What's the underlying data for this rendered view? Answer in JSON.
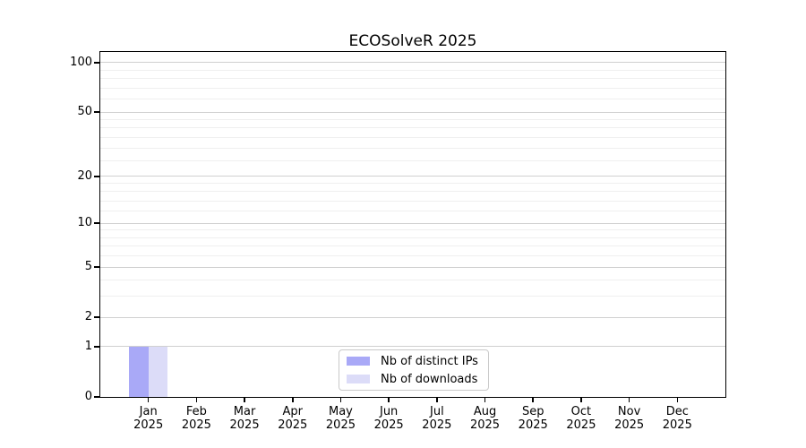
{
  "chart_data": {
    "type": "bar",
    "title": "ECOSolveR 2025",
    "year": "2025",
    "categories": [
      "Jan",
      "Feb",
      "Mar",
      "Apr",
      "May",
      "Jun",
      "Jul",
      "Aug",
      "Sep",
      "Oct",
      "Nov",
      "Dec"
    ],
    "series": [
      {
        "key": "distinct-ips",
        "name": "Nb of distinct IPs",
        "color": "#a9a9f7",
        "values": [
          1,
          0,
          0,
          0,
          0,
          0,
          0,
          0,
          0,
          0,
          0,
          0
        ]
      },
      {
        "key": "downloads",
        "name": "Nb of downloads",
        "color": "#dcdcf8",
        "values": [
          1,
          0,
          0,
          0,
          0,
          0,
          0,
          0,
          0,
          0,
          0,
          0
        ]
      }
    ],
    "y_axis": {
      "scale": "log1p",
      "range": [
        0,
        116
      ],
      "major_ticks": [
        0,
        1,
        2,
        5,
        10,
        20,
        50,
        100
      ],
      "minor_gridlines": [
        3,
        4,
        6,
        7,
        8,
        9,
        12,
        14,
        16,
        18,
        25,
        30,
        35,
        40,
        45,
        60,
        70,
        80,
        90
      ]
    },
    "x_axis": {
      "label_format": "month over year"
    },
    "legend": {
      "location": "lower center"
    },
    "colors": {
      "grid_major": "#d0d0d0",
      "grid_minor": "#efefef",
      "axis": "#000000",
      "background": "#ffffff"
    }
  }
}
